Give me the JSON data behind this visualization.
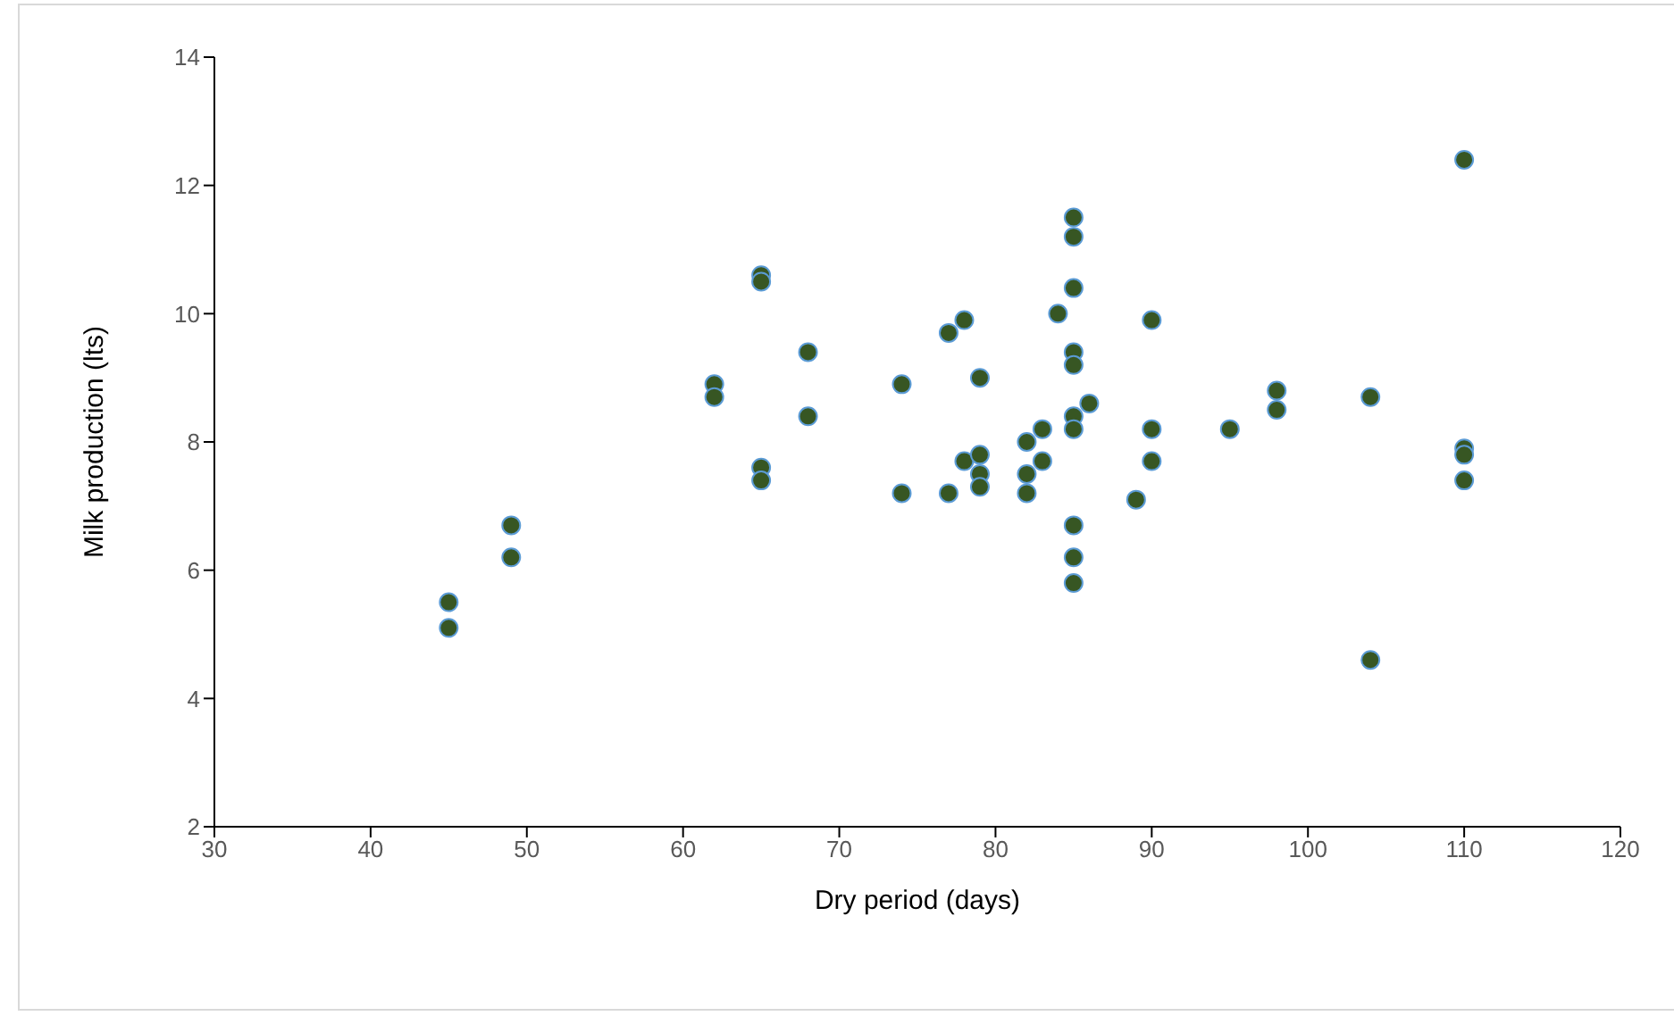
{
  "chart_data": {
    "type": "scatter",
    "xlabel": "Dry period (days)",
    "ylabel": "Milk production (lts)",
    "x": [
      45,
      45,
      49,
      49,
      62,
      62,
      65,
      65,
      65,
      65,
      68,
      68,
      74,
      74,
      77,
      77,
      78,
      78,
      79,
      79,
      79,
      79,
      82,
      82,
      82,
      83,
      83,
      84,
      85,
      85,
      85,
      85,
      85,
      85,
      85,
      85,
      85,
      85,
      86,
      89,
      90,
      90,
      90,
      95,
      98,
      98,
      104,
      104,
      110,
      110,
      110,
      110
    ],
    "values": [
      5.5,
      5.1,
      6.7,
      6.2,
      8.9,
      8.7,
      10.6,
      10.5,
      7.6,
      7.4,
      9.4,
      8.4,
      8.9,
      7.2,
      9.7,
      7.2,
      9.9,
      7.7,
      9.0,
      7.8,
      7.5,
      7.3,
      8.0,
      7.5,
      7.2,
      8.2,
      7.7,
      10.0,
      11.5,
      11.2,
      10.4,
      9.4,
      9.2,
      8.4,
      8.2,
      6.7,
      6.2,
      5.8,
      8.6,
      7.1,
      9.9,
      8.2,
      7.7,
      8.2,
      8.8,
      8.5,
      8.7,
      4.6,
      12.4,
      7.9,
      7.8,
      7.4
    ],
    "color": "#375623",
    "marker": "circle",
    "xlim": [
      30,
      120
    ],
    "xticks": [
      30,
      40,
      50,
      60,
      70,
      80,
      90,
      100,
      110,
      120
    ],
    "ylim": [
      2,
      14
    ],
    "yticks": [
      2,
      4,
      6,
      8,
      10,
      12,
      14
    ],
    "grid": false
  }
}
